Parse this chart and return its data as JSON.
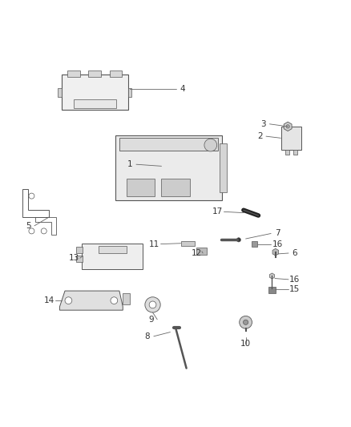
{
  "bg_color": "#ffffff",
  "line_color": "#555555",
  "label_color": "#333333",
  "font_size": 7.5,
  "label_data": [
    [
      4,
      0.52,
      0.855,
      0.37,
      0.855
    ],
    [
      3,
      0.75,
      0.755,
      0.82,
      0.748
    ],
    [
      2,
      0.74,
      0.72,
      0.8,
      0.715
    ],
    [
      1,
      0.37,
      0.64,
      0.46,
      0.635
    ],
    [
      5,
      0.08,
      0.465,
      0.14,
      0.49
    ],
    [
      17,
      0.62,
      0.505,
      0.695,
      0.502
    ],
    [
      7,
      0.79,
      0.443,
      0.7,
      0.428
    ],
    [
      11,
      0.44,
      0.413,
      0.515,
      0.415
    ],
    [
      16,
      0.79,
      0.413,
      0.733,
      0.413
    ],
    [
      12,
      0.56,
      0.387,
      0.575,
      0.392
    ],
    [
      13,
      0.21,
      0.373,
      0.235,
      0.378
    ],
    [
      6,
      0.84,
      0.387,
      0.793,
      0.385
    ],
    [
      16,
      0.84,
      0.312,
      0.783,
      0.315
    ],
    [
      15,
      0.84,
      0.285,
      0.783,
      0.285
    ],
    [
      14,
      0.14,
      0.252,
      0.175,
      0.252
    ],
    [
      9,
      0.43,
      0.198,
      0.435,
      0.218
    ],
    [
      8,
      0.42,
      0.15,
      0.485,
      0.162
    ],
    [
      10,
      0.7,
      0.128,
      0.7,
      0.148
    ]
  ]
}
